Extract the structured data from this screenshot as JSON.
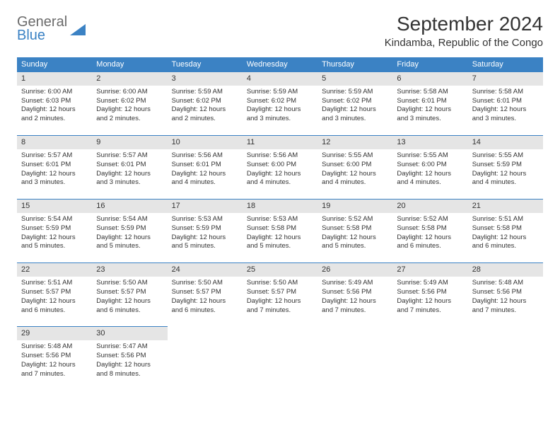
{
  "brand": {
    "word1": "General",
    "word2": "Blue"
  },
  "title": "September 2024",
  "location": "Kindamba, Republic of the Congo",
  "colors": {
    "header_bg": "#3b82c4",
    "daynum_bg": "#e5e5e5",
    "daynum_border": "#3b82c4",
    "text": "#333333",
    "logo_gray": "#6b6b6b",
    "logo_blue": "#3b82c4",
    "background": "#ffffff"
  },
  "typography": {
    "title_fontsize": 28,
    "location_fontsize": 15,
    "dayheader_fontsize": 11,
    "daynum_fontsize": 11,
    "body_fontsize": 9.5
  },
  "layout": {
    "columns": 7,
    "rows": 5
  },
  "day_headers": [
    "Sunday",
    "Monday",
    "Tuesday",
    "Wednesday",
    "Thursday",
    "Friday",
    "Saturday"
  ],
  "days": [
    {
      "n": "1",
      "sunrise": "Sunrise: 6:00 AM",
      "sunset": "Sunset: 6:03 PM",
      "d1": "Daylight: 12 hours",
      "d2": "and 2 minutes."
    },
    {
      "n": "2",
      "sunrise": "Sunrise: 6:00 AM",
      "sunset": "Sunset: 6:02 PM",
      "d1": "Daylight: 12 hours",
      "d2": "and 2 minutes."
    },
    {
      "n": "3",
      "sunrise": "Sunrise: 5:59 AM",
      "sunset": "Sunset: 6:02 PM",
      "d1": "Daylight: 12 hours",
      "d2": "and 2 minutes."
    },
    {
      "n": "4",
      "sunrise": "Sunrise: 5:59 AM",
      "sunset": "Sunset: 6:02 PM",
      "d1": "Daylight: 12 hours",
      "d2": "and 3 minutes."
    },
    {
      "n": "5",
      "sunrise": "Sunrise: 5:59 AM",
      "sunset": "Sunset: 6:02 PM",
      "d1": "Daylight: 12 hours",
      "d2": "and 3 minutes."
    },
    {
      "n": "6",
      "sunrise": "Sunrise: 5:58 AM",
      "sunset": "Sunset: 6:01 PM",
      "d1": "Daylight: 12 hours",
      "d2": "and 3 minutes."
    },
    {
      "n": "7",
      "sunrise": "Sunrise: 5:58 AM",
      "sunset": "Sunset: 6:01 PM",
      "d1": "Daylight: 12 hours",
      "d2": "and 3 minutes."
    },
    {
      "n": "8",
      "sunrise": "Sunrise: 5:57 AM",
      "sunset": "Sunset: 6:01 PM",
      "d1": "Daylight: 12 hours",
      "d2": "and 3 minutes."
    },
    {
      "n": "9",
      "sunrise": "Sunrise: 5:57 AM",
      "sunset": "Sunset: 6:01 PM",
      "d1": "Daylight: 12 hours",
      "d2": "and 3 minutes."
    },
    {
      "n": "10",
      "sunrise": "Sunrise: 5:56 AM",
      "sunset": "Sunset: 6:01 PM",
      "d1": "Daylight: 12 hours",
      "d2": "and 4 minutes."
    },
    {
      "n": "11",
      "sunrise": "Sunrise: 5:56 AM",
      "sunset": "Sunset: 6:00 PM",
      "d1": "Daylight: 12 hours",
      "d2": "and 4 minutes."
    },
    {
      "n": "12",
      "sunrise": "Sunrise: 5:55 AM",
      "sunset": "Sunset: 6:00 PM",
      "d1": "Daylight: 12 hours",
      "d2": "and 4 minutes."
    },
    {
      "n": "13",
      "sunrise": "Sunrise: 5:55 AM",
      "sunset": "Sunset: 6:00 PM",
      "d1": "Daylight: 12 hours",
      "d2": "and 4 minutes."
    },
    {
      "n": "14",
      "sunrise": "Sunrise: 5:55 AM",
      "sunset": "Sunset: 5:59 PM",
      "d1": "Daylight: 12 hours",
      "d2": "and 4 minutes."
    },
    {
      "n": "15",
      "sunrise": "Sunrise: 5:54 AM",
      "sunset": "Sunset: 5:59 PM",
      "d1": "Daylight: 12 hours",
      "d2": "and 5 minutes."
    },
    {
      "n": "16",
      "sunrise": "Sunrise: 5:54 AM",
      "sunset": "Sunset: 5:59 PM",
      "d1": "Daylight: 12 hours",
      "d2": "and 5 minutes."
    },
    {
      "n": "17",
      "sunrise": "Sunrise: 5:53 AM",
      "sunset": "Sunset: 5:59 PM",
      "d1": "Daylight: 12 hours",
      "d2": "and 5 minutes."
    },
    {
      "n": "18",
      "sunrise": "Sunrise: 5:53 AM",
      "sunset": "Sunset: 5:58 PM",
      "d1": "Daylight: 12 hours",
      "d2": "and 5 minutes."
    },
    {
      "n": "19",
      "sunrise": "Sunrise: 5:52 AM",
      "sunset": "Sunset: 5:58 PM",
      "d1": "Daylight: 12 hours",
      "d2": "and 5 minutes."
    },
    {
      "n": "20",
      "sunrise": "Sunrise: 5:52 AM",
      "sunset": "Sunset: 5:58 PM",
      "d1": "Daylight: 12 hours",
      "d2": "and 6 minutes."
    },
    {
      "n": "21",
      "sunrise": "Sunrise: 5:51 AM",
      "sunset": "Sunset: 5:58 PM",
      "d1": "Daylight: 12 hours",
      "d2": "and 6 minutes."
    },
    {
      "n": "22",
      "sunrise": "Sunrise: 5:51 AM",
      "sunset": "Sunset: 5:57 PM",
      "d1": "Daylight: 12 hours",
      "d2": "and 6 minutes."
    },
    {
      "n": "23",
      "sunrise": "Sunrise: 5:50 AM",
      "sunset": "Sunset: 5:57 PM",
      "d1": "Daylight: 12 hours",
      "d2": "and 6 minutes."
    },
    {
      "n": "24",
      "sunrise": "Sunrise: 5:50 AM",
      "sunset": "Sunset: 5:57 PM",
      "d1": "Daylight: 12 hours",
      "d2": "and 6 minutes."
    },
    {
      "n": "25",
      "sunrise": "Sunrise: 5:50 AM",
      "sunset": "Sunset: 5:57 PM",
      "d1": "Daylight: 12 hours",
      "d2": "and 7 minutes."
    },
    {
      "n": "26",
      "sunrise": "Sunrise: 5:49 AM",
      "sunset": "Sunset: 5:56 PM",
      "d1": "Daylight: 12 hours",
      "d2": "and 7 minutes."
    },
    {
      "n": "27",
      "sunrise": "Sunrise: 5:49 AM",
      "sunset": "Sunset: 5:56 PM",
      "d1": "Daylight: 12 hours",
      "d2": "and 7 minutes."
    },
    {
      "n": "28",
      "sunrise": "Sunrise: 5:48 AM",
      "sunset": "Sunset: 5:56 PM",
      "d1": "Daylight: 12 hours",
      "d2": "and 7 minutes."
    },
    {
      "n": "29",
      "sunrise": "Sunrise: 5:48 AM",
      "sunset": "Sunset: 5:56 PM",
      "d1": "Daylight: 12 hours",
      "d2": "and 7 minutes."
    },
    {
      "n": "30",
      "sunrise": "Sunrise: 5:47 AM",
      "sunset": "Sunset: 5:56 PM",
      "d1": "Daylight: 12 hours",
      "d2": "and 8 minutes."
    }
  ]
}
